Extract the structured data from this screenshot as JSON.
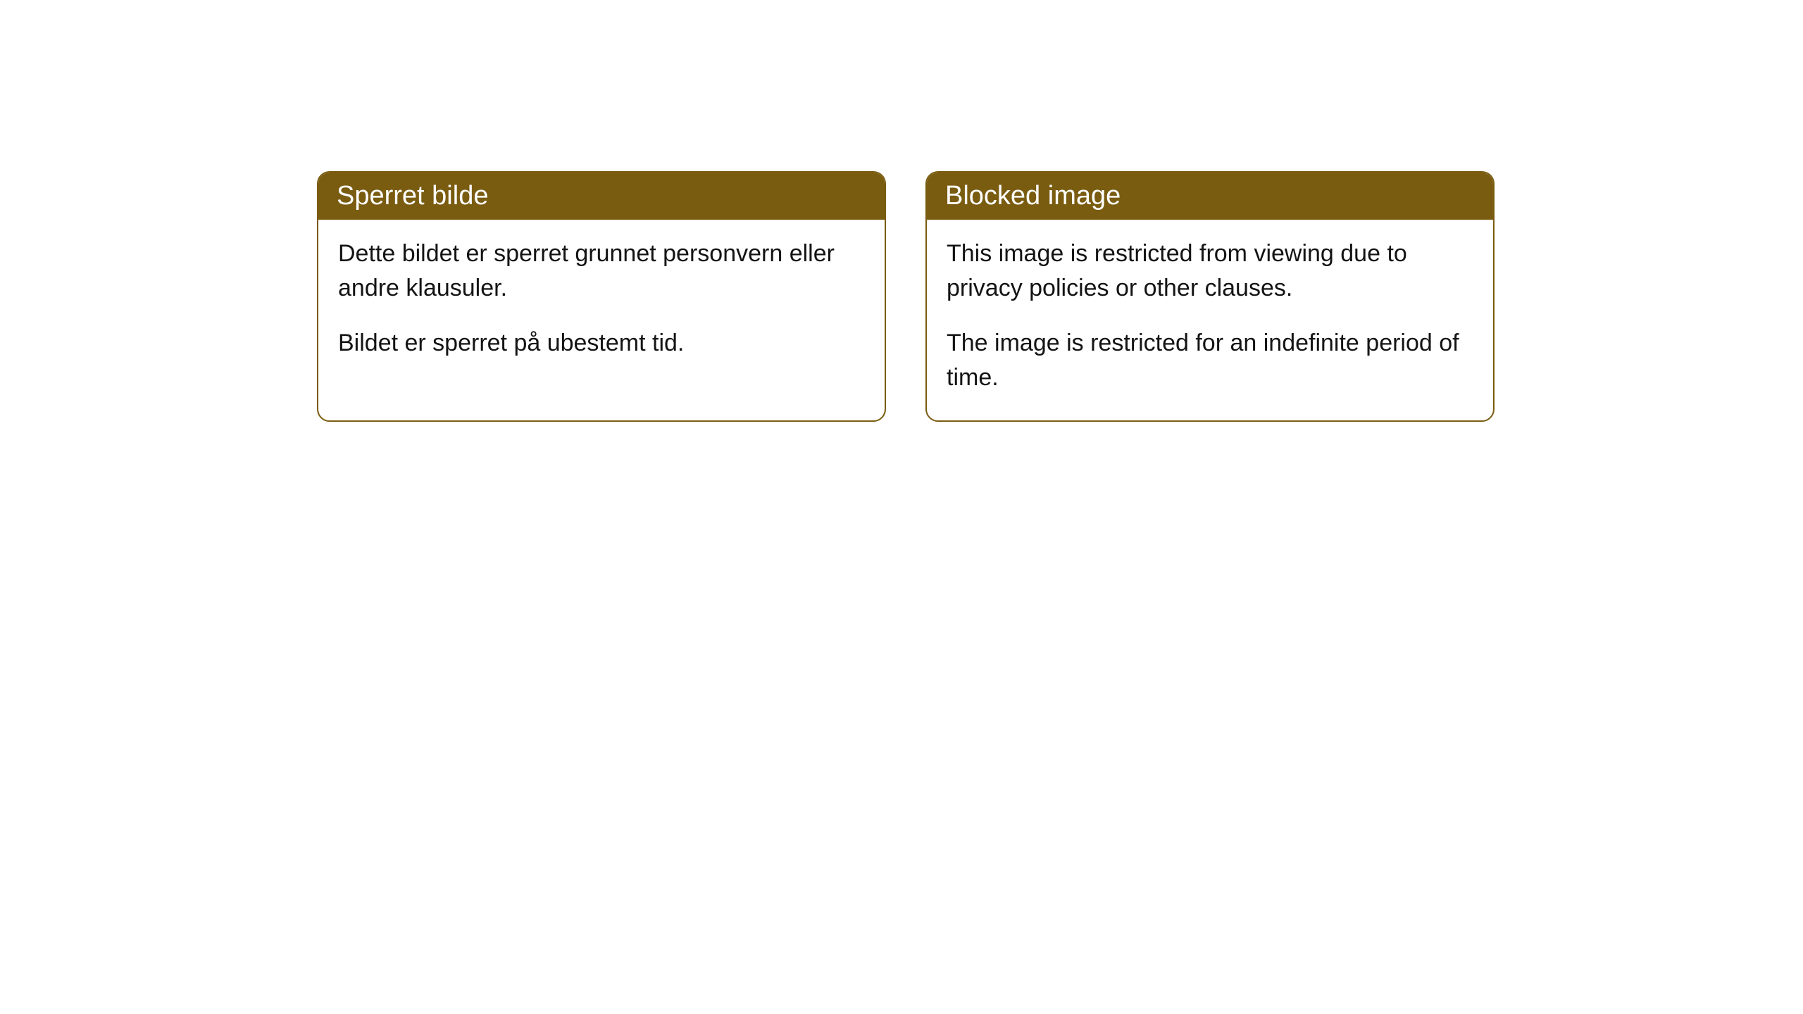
{
  "cards": [
    {
      "title": "Sperret bilde",
      "paragraph1": "Dette bildet er sperret grunnet personvern eller andre klausuler.",
      "paragraph2": "Bildet er sperret på ubestemt tid."
    },
    {
      "title": "Blocked image",
      "paragraph1": "This image is restricted from viewing due to privacy policies or other clauses.",
      "paragraph2": "The image is restricted for an indefinite period of time."
    }
  ],
  "style": {
    "header_bg_color": "#7a5c11",
    "header_text_color": "#ffffff",
    "card_border_color": "#7a5c11",
    "card_bg_color": "#ffffff",
    "body_text_color": "#141414",
    "page_bg_color": "#ffffff",
    "card_border_radius": 18,
    "title_fontsize": 38,
    "body_fontsize": 34
  }
}
